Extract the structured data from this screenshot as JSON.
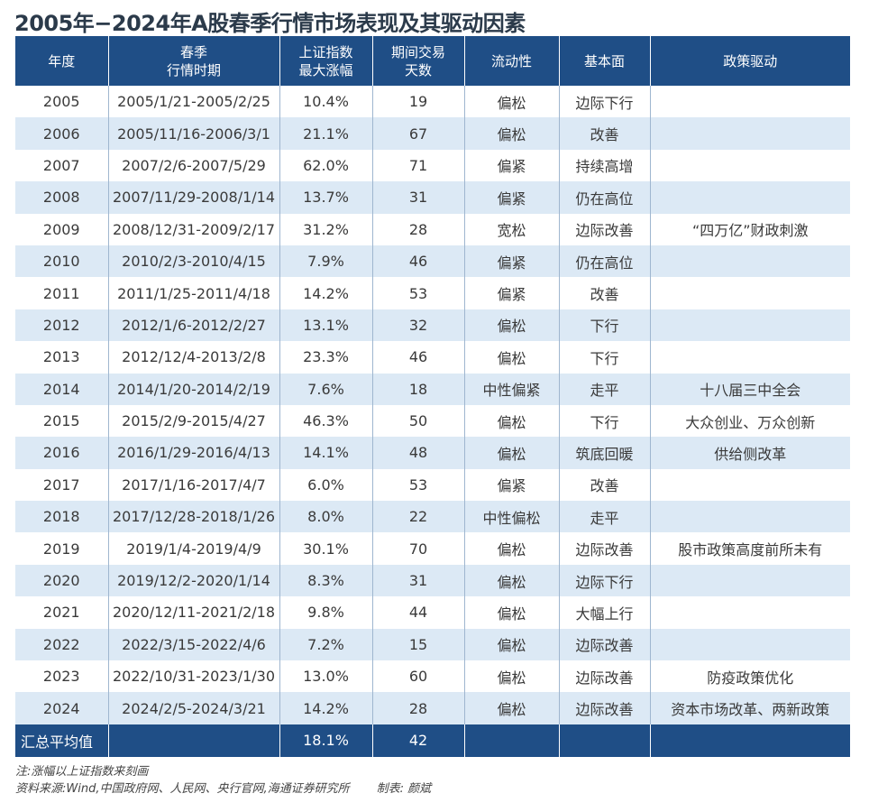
{
  "title": "2005年−2024年A股春季行情市场表现及其驱动因素",
  "chart_data": {
    "type": "table",
    "columns": [
      "年度",
      "春季\n行情时期",
      "上证指数\n最大涨幅",
      "期间交易\n天数",
      "流动性",
      "基本面",
      "政策驱动"
    ],
    "rows": [
      [
        "2005",
        "2005/1/21-2005/2/25",
        "10.4%",
        "19",
        "偏松",
        "边际下行",
        ""
      ],
      [
        "2006",
        "2005/11/16-2006/3/1",
        "21.1%",
        "67",
        "偏松",
        "改善",
        ""
      ],
      [
        "2007",
        "2007/2/6-2007/5/29",
        "62.0%",
        "71",
        "偏紧",
        "持续高增",
        ""
      ],
      [
        "2008",
        "2007/11/29-2008/1/14",
        "13.7%",
        "31",
        "偏紧",
        "仍在高位",
        ""
      ],
      [
        "2009",
        "2008/12/31-2009/2/17",
        "31.2%",
        "28",
        "宽松",
        "边际改善",
        "“四万亿”财政刺激"
      ],
      [
        "2010",
        "2010/2/3-2010/4/15",
        "7.9%",
        "46",
        "偏紧",
        "仍在高位",
        ""
      ],
      [
        "2011",
        "2011/1/25-2011/4/18",
        "14.2%",
        "53",
        "偏紧",
        "改善",
        ""
      ],
      [
        "2012",
        "2012/1/6-2012/2/27",
        "13.1%",
        "32",
        "偏松",
        "下行",
        ""
      ],
      [
        "2013",
        "2012/12/4-2013/2/8",
        "23.3%",
        "46",
        "偏松",
        "下行",
        ""
      ],
      [
        "2014",
        "2014/1/20-2014/2/19",
        "7.6%",
        "18",
        "中性偏紧",
        "走平",
        "十八届三中全会"
      ],
      [
        "2015",
        "2015/2/9-2015/4/27",
        "46.3%",
        "50",
        "偏松",
        "下行",
        "大众创业、万众创新"
      ],
      [
        "2016",
        "2016/1/29-2016/4/13",
        "14.1%",
        "48",
        "偏松",
        "筑底回暖",
        "供给侧改革"
      ],
      [
        "2017",
        "2017/1/16-2017/4/7",
        "6.0%",
        "53",
        "偏紧",
        "改善",
        ""
      ],
      [
        "2018",
        "2017/12/28-2018/1/26",
        "8.0%",
        "22",
        "中性偏松",
        "走平",
        ""
      ],
      [
        "2019",
        "2019/1/4-2019/4/9",
        "30.1%",
        "70",
        "偏松",
        "边际改善",
        "股市政策高度前所未有"
      ],
      [
        "2020",
        "2019/12/2-2020/1/14",
        "8.3%",
        "31",
        "偏松",
        "边际下行",
        ""
      ],
      [
        "2021",
        "2020/12/11-2021/2/18",
        "9.8%",
        "44",
        "偏松",
        "大幅上行",
        ""
      ],
      [
        "2022",
        "2022/3/15-2022/4/6",
        "7.2%",
        "15",
        "偏松",
        "边际改善",
        ""
      ],
      [
        "2023",
        "2022/10/31-2023/1/30",
        "13.0%",
        "60",
        "偏松",
        "边际改善",
        "防疫政策优化"
      ],
      [
        "2024",
        "2024/2/5-2024/3/21",
        "14.2%",
        "28",
        "偏松",
        "边际改善",
        "资本市场改革、两新政策"
      ]
    ],
    "summary": [
      "汇总平均值",
      "",
      "18.1%",
      "42",
      "",
      "",
      ""
    ]
  },
  "notes": {
    "line1": "注:涨幅以上证指数来刻画",
    "line2": "资料来源:Wind,中国政府网、人民网、央行官网,海通证券研究所",
    "credit": "制表: 颜斌"
  },
  "colors": {
    "header_bg": "#1f4e86",
    "stripe_bg": "#dce9f5",
    "title_color": "#2b3a4a"
  }
}
